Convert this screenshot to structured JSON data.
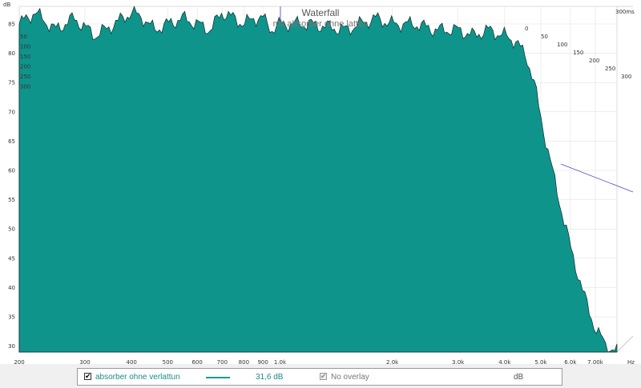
{
  "chart_data": {
    "type": "area",
    "title": "Waterfall",
    "subtitle": "mit absorber ohne latten",
    "ylabel": "dB",
    "xunit": "Hz",
    "xscale": "log",
    "xlim": [
      200,
      8000
    ],
    "ylim": [
      29,
      88
    ],
    "y_ticks": [
      30,
      35,
      40,
      45,
      50,
      55,
      60,
      65,
      70,
      75,
      80,
      85
    ],
    "x_ticks": [
      {
        "value": 200,
        "label": "200"
      },
      {
        "value": 300,
        "label": "300"
      },
      {
        "value": 400,
        "label": "400"
      },
      {
        "value": 500,
        "label": "500"
      },
      {
        "value": 600,
        "label": "600"
      },
      {
        "value": 700,
        "label": "700"
      },
      {
        "value": 800,
        "label": "800"
      },
      {
        "value": 900,
        "label": "900"
      },
      {
        "value": 1000,
        "label": "1,0k"
      },
      {
        "value": 2000,
        "label": "2,0k"
      },
      {
        "value": 3000,
        "label": "3,0k"
      },
      {
        "value": 4000,
        "label": "4,0k"
      },
      {
        "value": 5000,
        "label": "5,0k"
      },
      {
        "value": 6000,
        "label": "6,0k"
      },
      {
        "value": 7000,
        "label": "7,00k"
      }
    ],
    "time_axis": {
      "unit_label": "300ms",
      "ticks": [
        "0",
        "50",
        "100",
        "150",
        "200",
        "250",
        "300"
      ],
      "inner_ticks": [
        "50",
        "100",
        "150",
        "200",
        "250",
        "300"
      ]
    },
    "series": [
      {
        "time_ms": 0,
        "x": [
          200,
          220,
          250,
          280,
          320,
          360,
          400,
          430,
          460,
          500,
          550,
          600,
          650,
          700,
          750,
          800,
          850,
          900,
          950,
          1000,
          1200,
          1500,
          1800,
          2000,
          2300,
          2600,
          3000,
          3300,
          3600,
          4000,
          4300,
          4600,
          4800,
          5000,
          5500,
          6000,
          6500,
          7000,
          7500,
          8000
        ],
        "y": [
          85,
          87,
          84,
          86,
          83,
          85,
          87,
          86,
          84,
          85,
          86,
          85,
          84,
          87,
          86,
          85,
          86,
          86,
          84,
          85,
          85,
          84,
          86,
          85,
          85,
          84,
          84,
          83,
          84,
          83,
          82,
          79,
          75,
          69,
          57,
          47,
          39,
          33,
          30,
          29
        ]
      }
    ],
    "slices": 30,
    "fill_color": "#0f948c",
    "line_color": "#0a2e2c"
  },
  "legend": {
    "entry_label": "absorber ohne verlattun",
    "entry_value": "31,6 dB",
    "entry_checked": "✔",
    "overlay_label": "No overlay",
    "overlay_checked": "✔",
    "unit": "dB",
    "line_color": "#1a9c96"
  }
}
